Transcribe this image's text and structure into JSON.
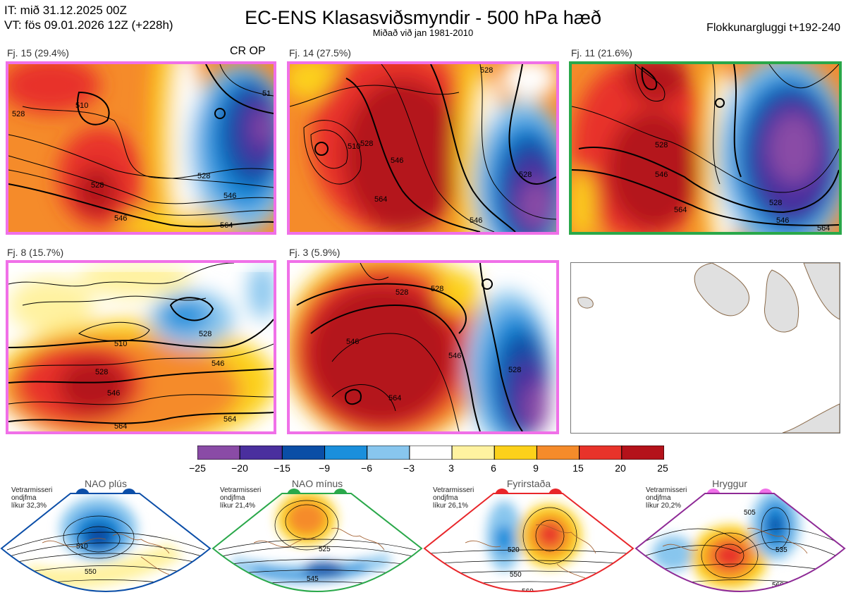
{
  "header": {
    "it_line": "IT: mið 31.12.2025 00Z",
    "vt_line": "VT: fös 09.01.2026 12Z  (+228h)",
    "title": "EC-ENS Klasasviðsmyndir - 500 hPa hæð",
    "subtitle": "Miðað við jan 1981-2010",
    "window": "Flokkunargluggi t+192-240"
  },
  "colors": {
    "nao_plus": "#0b4ea8",
    "nao_minus": "#2aa84a",
    "blocking": "#e8262a",
    "ridge": "#f070e8"
  },
  "panels": [
    {
      "label": "Fj. 15 (29.4%)",
      "tag": "CR OP",
      "border": "#f070e8",
      "contours": [
        "510",
        "528",
        "528",
        "546",
        "564",
        "528",
        "546",
        "51"
      ]
    },
    {
      "label": "Fj. 14 (27.5%)",
      "border": "#f070e8",
      "contours": [
        "510",
        "528",
        "546",
        "564",
        "528",
        "546",
        "528"
      ]
    },
    {
      "label": "Fj. 11 (21.6%)",
      "border": "#2aa84a",
      "contours": [
        "528",
        "546",
        "564",
        "528",
        "546",
        "564"
      ]
    },
    {
      "label": "Fj. 8 (15.7%)",
      "border": "#f070e8",
      "contours": [
        "510",
        "528",
        "546",
        "528",
        "546",
        "564",
        "564"
      ]
    },
    {
      "label": "Fj. 3 (5.9%)",
      "border": "#f070e8",
      "contours": [
        "528",
        "546",
        "564",
        "546",
        "528",
        "528"
      ]
    }
  ],
  "colorbar": {
    "ticks": [
      "−25",
      "−20",
      "−15",
      "−9",
      "−6",
      "−3",
      "3",
      "6",
      "9",
      "15",
      "20",
      "25"
    ],
    "colors": [
      "#8a4ba6",
      "#4a2f9e",
      "#0a4ea6",
      "#1a8fdc",
      "#88c6ee",
      "#ffffff",
      "#fff2a0",
      "#fcd11a",
      "#f58b2a",
      "#e8332a",
      "#b4121a"
    ]
  },
  "regimes": [
    {
      "title": "NAO plús",
      "info": [
        "Vetrarmisseri",
        "ondjfma",
        "líkur 32,3%"
      ],
      "contours": [
        "510",
        "550"
      ]
    },
    {
      "title": "NAO mínus",
      "info": [
        "Vetrarmisseri",
        "ondjfma",
        "líkur 21,4%"
      ],
      "contours": [
        "525",
        "545",
        "565"
      ]
    },
    {
      "title": "Fyrirstaða",
      "info": [
        "Vetrarmisseri",
        "ondjfma",
        "líkur 26,1%"
      ],
      "contours": [
        "520",
        "550",
        "560"
      ]
    },
    {
      "title": "Hryggur",
      "info": [
        "Vetrarmisseri",
        "ondjfma",
        "líkur 20,2%"
      ],
      "contours": [
        "505",
        "535",
        "560"
      ]
    }
  ]
}
